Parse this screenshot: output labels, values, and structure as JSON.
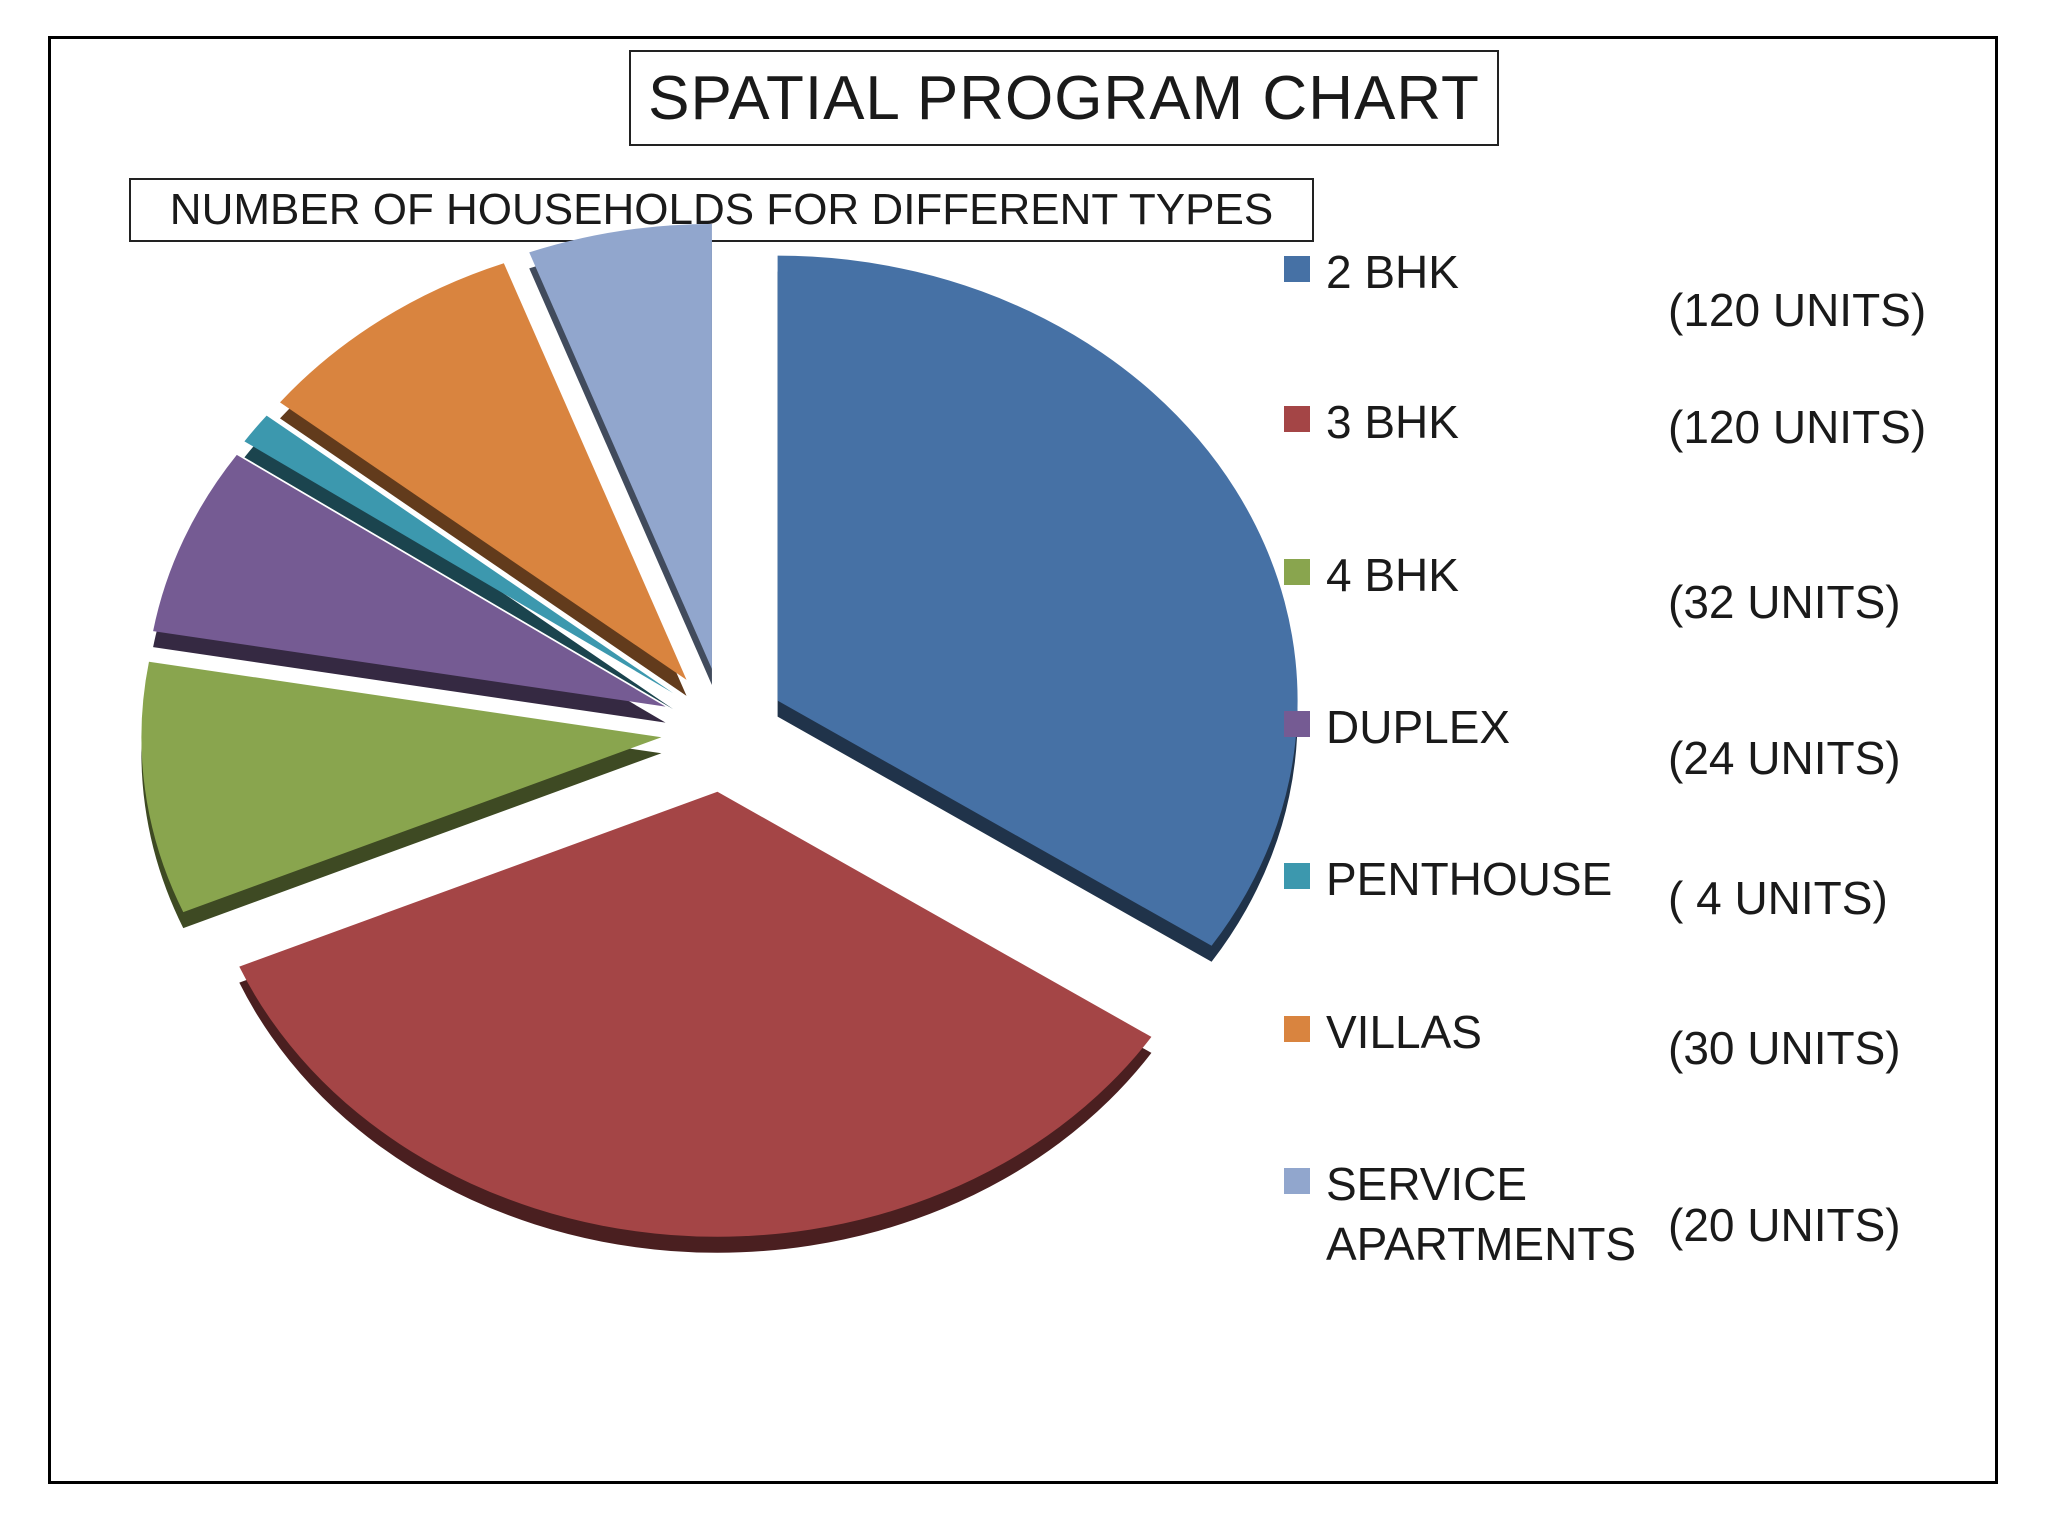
{
  "chart_data": {
    "type": "pie",
    "style": "3d-exploded",
    "title": "SPATIAL PROGRAM CHART",
    "subtitle": "NUMBER OF HOUSEHOLDS FOR DIFFERENT TYPES",
    "categories": [
      "2 BHK",
      "3 BHK",
      "4 BHK",
      "DUPLEX",
      "PENTHOUSE",
      "VILLAS",
      "SERVICE\nAPARTMENTS"
    ],
    "values": [
      120,
      120,
      32,
      24,
      4,
      30,
      20
    ],
    "value_labels": [
      "(120 UNITS)",
      "(120 UNITS)",
      "(32 UNITS)",
      "(24 UNITS)",
      "( 4 UNITS)",
      "(30 UNITS)",
      "(20 UNITS)"
    ],
    "colors": [
      "#4671a5",
      "#a44546",
      "#89a54e",
      "#755b93",
      "#3c98ae",
      "#d9843f",
      "#91a6cd"
    ],
    "legend_position": "right"
  }
}
